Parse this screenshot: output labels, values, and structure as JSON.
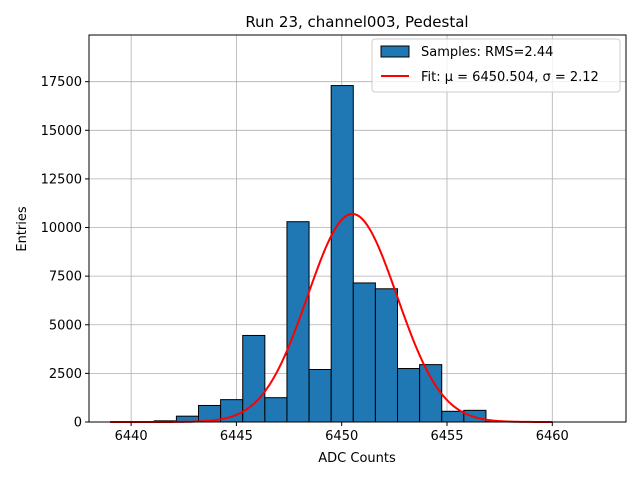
{
  "chart_data": {
    "type": "bar",
    "title": "Run 23, channel003, Pedestal",
    "xlabel": "ADC Counts",
    "ylabel": "Entries",
    "xlim": [
      6438,
      6463.5
    ],
    "ylim": [
      0,
      19900
    ],
    "xticks": [
      6440,
      6445,
      6450,
      6455,
      6460
    ],
    "yticks": [
      0,
      2500,
      5000,
      7500,
      10000,
      12500,
      15000,
      17500
    ],
    "grid": true,
    "legend_position": "top-right",
    "bar_color": "#1f77b4",
    "fit_color": "#ff0000",
    "series": [
      {
        "name": "Samples: RMS=2.44",
        "kind": "histogram",
        "bin_edges": [
          6439,
          6440.05,
          6441.1,
          6442.15,
          6443.2,
          6444.25,
          6445.3,
          6446.35,
          6447.4,
          6448.45,
          6449.5,
          6450.55,
          6451.6,
          6452.65,
          6453.7,
          6454.75,
          6455.8,
          6456.85,
          6457.9,
          6458.95,
          6460
        ],
        "values": [
          0,
          0,
          60,
          300,
          850,
          1150,
          4450,
          1250,
          10300,
          2700,
          17300,
          7150,
          6850,
          2750,
          2950,
          550,
          600,
          30,
          0,
          0
        ]
      },
      {
        "name": "Fit: μ = 6450.504, σ = 2.12",
        "kind": "gaussian-fit",
        "mu": 6450.504,
        "sigma": 2.12,
        "amplitude": 10700,
        "x_range": [
          6439,
          6460
        ]
      }
    ]
  }
}
